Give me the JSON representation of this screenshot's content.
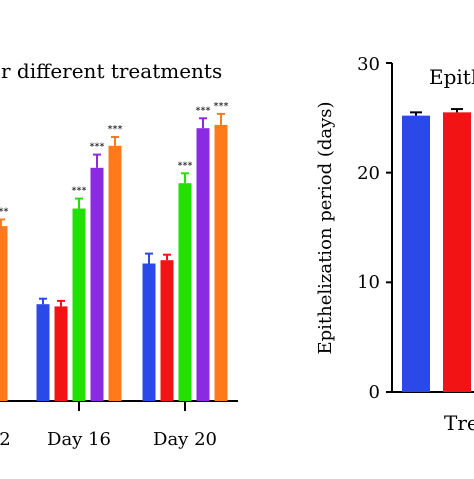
{
  "chart_data": [
    {
      "type": "bar",
      "title": "r different treatments",
      "categories": [
        "2",
        "Day 16",
        "Day 20"
      ],
      "series": [
        {
          "color": "#2b48e8",
          "values": [
            null,
            8.8,
            12.5
          ]
        },
        {
          "color": "#f21414",
          "values": [
            null,
            8.6,
            12.8
          ]
        },
        {
          "color": "#22e000",
          "values": [
            null,
            17.5,
            19.8
          ]
        },
        {
          "color": "#8a2be2",
          "values": [
            null,
            21.2,
            24.8
          ]
        },
        {
          "color": "#ff7a1a",
          "values": [
            15.9,
            23.2,
            25.1
          ]
        }
      ],
      "errors": [
        [
          null,
          0.5,
          0.9
        ],
        [
          null,
          0.5,
          0.5
        ],
        [
          null,
          0.9,
          0.9
        ],
        [
          null,
          1.2,
          0.9
        ],
        [
          0.6,
          0.8,
          1.0
        ]
      ],
      "significance": [
        [
          null,
          null,
          null
        ],
        [
          null,
          null,
          null
        ],
        [
          null,
          "***",
          "***"
        ],
        [
          null,
          "***",
          "***"
        ],
        [
          "***",
          "***",
          "***"
        ]
      ],
      "ylim": [
        0,
        30
      ]
    },
    {
      "type": "bar",
      "title": "Epith",
      "xlabel": "Tre",
      "ylabel": "Epithelization period (days)",
      "yticks": [
        "0",
        "10",
        "20",
        "30"
      ],
      "ylim": [
        0,
        30
      ],
      "series": [
        {
          "color": "#2b48e8",
          "value": 25.2,
          "error": 0.3
        },
        {
          "color": "#f21414",
          "value": 25.5,
          "error": 0.3
        }
      ]
    }
  ]
}
